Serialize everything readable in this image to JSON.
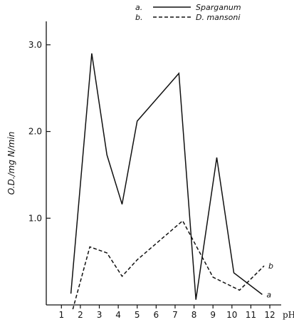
{
  "chart_data": {
    "type": "line",
    "xlabel": "pH",
    "ylabel": "O.D./mg N/min",
    "x_ticks": [
      "1",
      "2",
      "3",
      "4",
      "5",
      "6",
      "7",
      "8",
      "9",
      "10",
      "11",
      "12"
    ],
    "y_ticks": [
      "1.0",
      "2.0",
      "3.0"
    ],
    "xlim": [
      0.2,
      12.6
    ],
    "ylim": [
      0.0,
      3.27
    ],
    "grid": false,
    "legend_position": "top-right",
    "series": [
      {
        "key": "a.",
        "name": "Sparganum",
        "end_label": "a",
        "line_style": "solid",
        "color": "#111111",
        "points": [
          {
            "x": 1.5,
            "y": 0.13
          },
          {
            "x": 2.6,
            "y": 2.9
          },
          {
            "x": 3.4,
            "y": 1.73
          },
          {
            "x": 4.2,
            "y": 1.16
          },
          {
            "x": 5.0,
            "y": 2.12
          },
          {
            "x": 7.2,
            "y": 2.67
          },
          {
            "x": 8.1,
            "y": 0.06
          },
          {
            "x": 9.2,
            "y": 1.7
          },
          {
            "x": 10.1,
            "y": 0.37
          },
          {
            "x": 11.6,
            "y": 0.12
          }
        ]
      },
      {
        "key": "b.",
        "name": "D. mansoni",
        "end_label": "b",
        "line_style": "dashed",
        "color": "#111111",
        "points": [
          {
            "x": 1.6,
            "y": -0.05
          },
          {
            "x": 2.5,
            "y": 0.67
          },
          {
            "x": 3.4,
            "y": 0.6
          },
          {
            "x": 4.2,
            "y": 0.33
          },
          {
            "x": 5.0,
            "y": 0.52
          },
          {
            "x": 7.4,
            "y": 0.97
          },
          {
            "x": 9.0,
            "y": 0.32
          },
          {
            "x": 10.4,
            "y": 0.17
          },
          {
            "x": 11.7,
            "y": 0.45
          }
        ]
      }
    ]
  }
}
